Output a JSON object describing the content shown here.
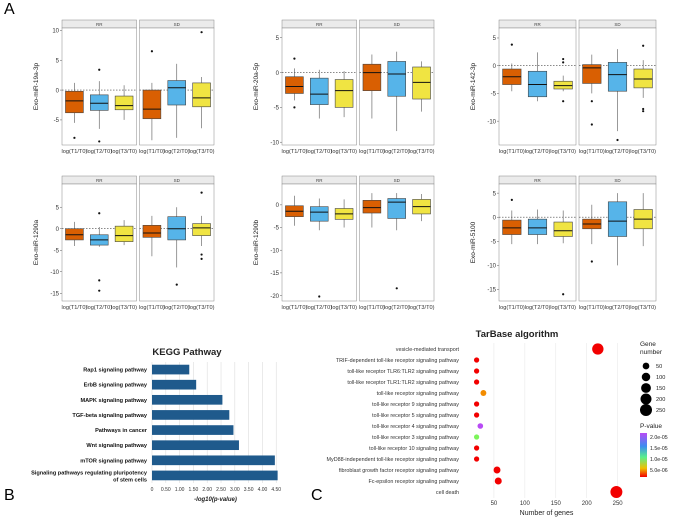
{
  "panels": {
    "a": "A",
    "b": "B",
    "c": "C"
  },
  "colors": {
    "t1": "#D95F02",
    "t2": "#56B4E9",
    "t3": "#F0E442",
    "kegg_bar": "#1F5A8C",
    "strip": "#EBEBEB",
    "panel_bg": "#FFFFFF"
  },
  "chart_data": [
    {
      "type": "box",
      "ylabel": "Exo-miR-19a-3p",
      "facets": [
        "RR",
        "SD"
      ],
      "categories": [
        "log(T1/T0)",
        "log(T2/T0)",
        "log(T3/T0)"
      ],
      "yticks": [
        10,
        5,
        0,
        -5
      ],
      "ylim": [
        -9.2,
        10.4
      ],
      "reference_line": 0,
      "boxes": {
        "RR": [
          {
            "q1": -3.8,
            "median": -1.8,
            "q3": -0.2,
            "whisker_low": -5.5,
            "whisker_high": 1.2,
            "outliers": [
              -8
            ]
          },
          {
            "q1": -3.4,
            "median": -2.2,
            "q3": -0.8,
            "whisker_low": -6.5,
            "whisker_high": 1.5,
            "outliers": [
              3.4,
              -8.6
            ]
          },
          {
            "q1": -3.3,
            "median": -2.6,
            "q3": -1.0,
            "whisker_low": -5.0,
            "whisker_high": 0.8,
            "outliers": []
          }
        ],
        "SD": [
          {
            "q1": -4.8,
            "median": -3.2,
            "q3": 0.0,
            "whisker_low": -8.4,
            "whisker_high": 1.2,
            "outliers": [
              6.5
            ]
          },
          {
            "q1": -2.5,
            "median": 0.4,
            "q3": 1.6,
            "whisker_low": -8.0,
            "whisker_high": 4.4,
            "outliers": []
          },
          {
            "q1": -2.8,
            "median": -1.3,
            "q3": 1.2,
            "whisker_low": -6.4,
            "whisker_high": 2.2,
            "outliers": [
              9.7
            ]
          }
        ]
      }
    },
    {
      "type": "box",
      "ylabel": "Exo-miR-20a-5p",
      "facets": [
        "RR",
        "SD"
      ],
      "categories": [
        "log(T1/T0)",
        "log(T2/T0)",
        "log(T3/T0)"
      ],
      "yticks": [
        5,
        0,
        -5,
        -10
      ],
      "ylim": [
        -10.4,
        6.4
      ],
      "reference_line": 0,
      "boxes": {
        "RR": [
          {
            "q1": -3.0,
            "median": -2.0,
            "q3": -0.6,
            "whisker_low": -4.0,
            "whisker_high": 0.6,
            "outliers": [
              2.0,
              -5.0
            ]
          },
          {
            "q1": -4.6,
            "median": -3.1,
            "q3": -0.8,
            "whisker_low": -6.6,
            "whisker_high": 0.4,
            "outliers": []
          },
          {
            "q1": -5.0,
            "median": -2.6,
            "q3": -1.0,
            "whisker_low": -6.4,
            "whisker_high": 0.2,
            "outliers": []
          }
        ],
        "SD": [
          {
            "q1": -2.6,
            "median": 0.0,
            "q3": 1.2,
            "whisker_low": -6.6,
            "whisker_high": 2.6,
            "outliers": []
          },
          {
            "q1": -3.4,
            "median": -0.2,
            "q3": 1.6,
            "whisker_low": -8.4,
            "whisker_high": 3.0,
            "outliers": []
          },
          {
            "q1": -3.8,
            "median": -1.4,
            "q3": 0.8,
            "whisker_low": -5.6,
            "whisker_high": 1.6,
            "outliers": []
          }
        ]
      }
    },
    {
      "type": "box",
      "ylabel": "Exo-miR-142-3p",
      "facets": [
        "RR",
        "SD"
      ],
      "categories": [
        "log(T1/T0)",
        "log(T2/T0)",
        "log(T3/T0)"
      ],
      "yticks": [
        5,
        0,
        -5,
        -10
      ],
      "ylim": [
        -14.3,
        6.8
      ],
      "reference_line": 0,
      "boxes": {
        "RR": [
          {
            "q1": -3.4,
            "median": -2.0,
            "q3": -0.6,
            "whisker_low": -4.6,
            "whisker_high": 0.4,
            "outliers": [
              3.8
            ]
          },
          {
            "q1": -5.6,
            "median": -3.4,
            "q3": -1.0,
            "whisker_low": -6.4,
            "whisker_high": 2.4,
            "outliers": []
          },
          {
            "q1": -4.2,
            "median": -3.6,
            "q3": -2.8,
            "whisker_low": -4.6,
            "whisker_high": -1.8,
            "outliers": [
              1.2,
              0.6,
              -6.4
            ]
          }
        ],
        "SD": [
          {
            "q1": -3.2,
            "median": -0.4,
            "q3": 0.2,
            "whisker_low": -5.0,
            "whisker_high": 2.0,
            "outliers": [
              -6.4,
              -10.6
            ]
          },
          {
            "q1": -4.6,
            "median": -1.6,
            "q3": 0.6,
            "whisker_low": -11.8,
            "whisker_high": 3.0,
            "outliers": [
              -13.4
            ]
          },
          {
            "q1": -4.0,
            "median": -2.4,
            "q3": -0.6,
            "whisker_low": -5.8,
            "whisker_high": 1.0,
            "outliers": [
              3.6,
              -7.8,
              -8.2
            ]
          }
        ]
      }
    },
    {
      "type": "box",
      "ylabel": "Exo-miR-1290a",
      "facets": [
        "RR",
        "SD"
      ],
      "categories": [
        "log(T1/T0)",
        "log(T2/T0)",
        "log(T3/T0)"
      ],
      "yticks": [
        5,
        0,
        -5,
        -10,
        -15
      ],
      "ylim": [
        -16.8,
        10.4
      ],
      "reference_line": 0,
      "boxes": {
        "RR": [
          {
            "q1": -2.6,
            "median": -1.4,
            "q3": 0.0,
            "whisker_low": -4.0,
            "whisker_high": 1.6,
            "outliers": []
          },
          {
            "q1": -3.8,
            "median": -2.6,
            "q3": -1.4,
            "whisker_low": -4.2,
            "whisker_high": 0.4,
            "outliers": [
              3.6,
              -12.0,
              -14.4
            ]
          },
          {
            "q1": -3.0,
            "median": -1.6,
            "q3": 0.6,
            "whisker_low": -3.8,
            "whisker_high": 2.0,
            "outliers": []
          }
        ],
        "SD": [
          {
            "q1": -2.0,
            "median": -1.0,
            "q3": 0.8,
            "whisker_low": -6.4,
            "whisker_high": 3.0,
            "outliers": []
          },
          {
            "q1": -2.6,
            "median": 0.0,
            "q3": 2.8,
            "whisker_low": -9.0,
            "whisker_high": 5.0,
            "outliers": [
              -13.0
            ]
          },
          {
            "q1": -1.6,
            "median": 0.2,
            "q3": 1.2,
            "whisker_low": -4.0,
            "whisker_high": 3.0,
            "outliers": [
              8.4,
              -6.0,
              -7.0
            ]
          }
        ]
      }
    },
    {
      "type": "box",
      "ylabel": "Exo-miR-1290b",
      "facets": [
        "RR",
        "SD"
      ],
      "categories": [
        "log(T1/T0)",
        "log(T2/T0)",
        "log(T3/T0)"
      ],
      "yticks": [
        0,
        -5,
        -10,
        -15,
        -20
      ],
      "ylim": [
        -21.2,
        4.6
      ],
      "reference_line": null,
      "boxes": {
        "RR": [
          {
            "q1": -2.6,
            "median": -1.4,
            "q3": -0.2,
            "whisker_low": -4.6,
            "whisker_high": 2.0,
            "outliers": []
          },
          {
            "q1": -3.6,
            "median": -1.6,
            "q3": -0.4,
            "whisker_low": -5.6,
            "whisker_high": 1.4,
            "outliers": [
              -20.2
            ]
          },
          {
            "q1": -3.2,
            "median": -2.0,
            "q3": -0.8,
            "whisker_low": -5.0,
            "whisker_high": 1.2,
            "outliers": []
          }
        ],
        "SD": [
          {
            "q1": -1.8,
            "median": -0.6,
            "q3": 1.0,
            "whisker_low": -5.0,
            "whisker_high": 2.6,
            "outliers": []
          },
          {
            "q1": -3.0,
            "median": 0.6,
            "q3": 1.4,
            "whisker_low": -5.6,
            "whisker_high": 2.6,
            "outliers": [
              -18.4
            ]
          },
          {
            "q1": -2.0,
            "median": -0.4,
            "q3": 1.2,
            "whisker_low": -3.6,
            "whisker_high": 2.4,
            "outliers": []
          }
        ]
      }
    },
    {
      "type": "box",
      "ylabel": "Exo-miR-5100",
      "facets": [
        "RR",
        "SD"
      ],
      "categories": [
        "log(T1/T0)",
        "log(T2/T0)",
        "log(T3/T0)"
      ],
      "yticks": [
        5,
        0,
        -5,
        -10,
        -15
      ],
      "ylim": [
        -17.4,
        6.9
      ],
      "reference_line": 0,
      "boxes": {
        "RR": [
          {
            "q1": -3.6,
            "median": -2.2,
            "q3": -0.6,
            "whisker_low": -5.6,
            "whisker_high": 1.4,
            "outliers": [
              3.6
            ]
          },
          {
            "q1": -3.6,
            "median": -2.2,
            "q3": -0.4,
            "whisker_low": -5.6,
            "whisker_high": 1.6,
            "outliers": []
          },
          {
            "q1": -4.0,
            "median": -2.8,
            "q3": -1.0,
            "whisker_low": -5.4,
            "whisker_high": 1.4,
            "outliers": [
              -16.0
            ]
          }
        ],
        "SD": [
          {
            "q1": -2.4,
            "median": -1.4,
            "q3": -0.4,
            "whisker_low": -5.6,
            "whisker_high": 2.6,
            "outliers": [
              -9.2
            ]
          },
          {
            "q1": -4.0,
            "median": -0.8,
            "q3": 3.2,
            "whisker_low": -10.0,
            "whisker_high": 5.0,
            "outliers": []
          },
          {
            "q1": -2.4,
            "median": -0.4,
            "q3": 1.6,
            "whisker_low": -6.0,
            "whisker_high": 5.0,
            "outliers": []
          }
        ]
      }
    },
    {
      "type": "bar",
      "orientation": "horizontal",
      "title": "KEGG Pathway",
      "xlabel": "-log10(p-value)",
      "xlim": [
        0,
        4.6
      ],
      "xticks": [
        0,
        0.5,
        1,
        1.5,
        2,
        2.5,
        3,
        3.5,
        4,
        4.5
      ],
      "xtick_labels": [
        "0",
        "0.50",
        "1.00",
        "1.50",
        "2.00",
        "2.50",
        "3.00",
        "3.50",
        "4.00",
        "4.50"
      ],
      "categories": [
        "Rap1 signaling pathway",
        "ErbB signaling pathway",
        "MAPK signaling pathway",
        "TGF-beta signaling pathway",
        "Pathways in cancer",
        "Wnt signaling pathway",
        "mTOR signaling pathway",
        "Signaling pathways regulating pluripotency of stem cells"
      ],
      "values": [
        1.35,
        1.6,
        2.55,
        2.8,
        2.95,
        3.15,
        4.45,
        4.55
      ]
    },
    {
      "type": "scatter",
      "title": "TarBase algorithm",
      "xlabel": "Number of genes",
      "xlim": [
        0,
        270
      ],
      "xticks": [
        50,
        100,
        150,
        200,
        250
      ],
      "categories": [
        "vesicle-mediated transport",
        "TRIF-dependent toll-like receptor signaling pathway",
        "toll-like receptor TLR6:TLR2 signaling pathway",
        "toll-like receptor TLR1:TLR2 signaling pathway",
        "toll-like receptor signaling pathway",
        "toll-like receptor 9 signaling pathway",
        "toll-like receptor 5 signaling pathway",
        "toll-like receptor 4 signaling pathway",
        "toll-like receptor 3 signaling pathway",
        "toll-like receptor 10 signaling pathway",
        "MyD88-independent toll-like receptor signaling pathway",
        "fibroblast growth factor receptor signaling pathway",
        "Fc-epsilon receptor signaling pathway",
        "cell death"
      ],
      "genes": [
        218,
        22,
        22,
        22,
        33,
        22,
        22,
        28,
        22,
        22,
        22,
        55,
        57,
        248
      ],
      "pvalue_color": [
        "#F20000",
        "#F20000",
        "#F20000",
        "#F20000",
        "#F28C00",
        "#F20000",
        "#F20000",
        "#B84AF5",
        "#7CF55A",
        "#F20000",
        "#F20000",
        "#F20000",
        "#F20000",
        "#F20000"
      ],
      "size_legend": {
        "title_line1": "Gene",
        "title_line2": "number",
        "values": [
          50,
          100,
          150,
          200,
          250
        ]
      },
      "color_legend": {
        "title": "P-value",
        "labels": [
          "2.0e-05",
          "1.5e-05",
          "1.0e-05",
          "5.0e-06"
        ]
      }
    }
  ]
}
